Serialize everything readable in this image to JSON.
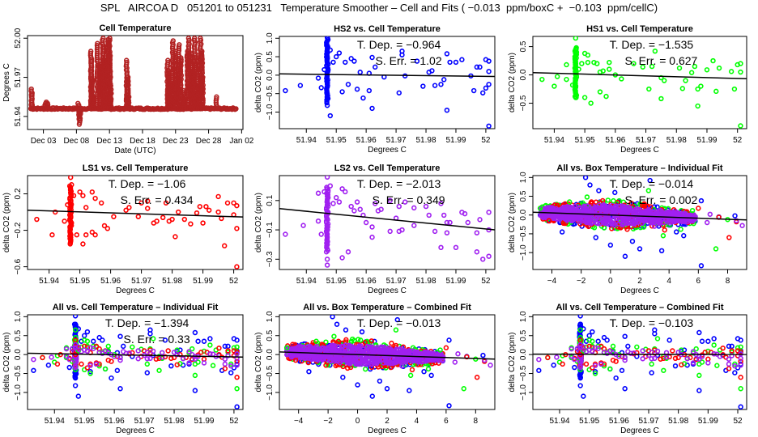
{
  "title": "SPL   AIRCOA D   051201 to 051231   Temperature Smoother – Cell and Fits ( −0.013  ppm/boxC +  −0.103  ppm/cellC)",
  "colors": {
    "HS2": "#0000ff",
    "HS1": "#00ff00",
    "LS1": "#ff0000",
    "LS2": "#a020f0",
    "cell": "#b22222",
    "fit": "#000000"
  },
  "chart_data": [
    {
      "id": "cell-temperature",
      "type": "scatter",
      "title": "Cell Temperature",
      "xlabel": "Date (UTC)",
      "ylabel": "Degrees C",
      "xticks": [
        "Dec 03",
        "Dec 08",
        "Dec 13",
        "Dec 18",
        "Dec 23",
        "Dec 28",
        "Jan 02"
      ],
      "xtick_days": [
        3,
        8,
        13,
        18,
        23,
        28,
        33
      ],
      "xlim": [
        0.6,
        33.2
      ],
      "yticks": [
        51.94,
        51.97,
        52.0
      ],
      "ylim": [
        51.93,
        52.002
      ],
      "series": [
        {
          "name": "cell",
          "color": "#b22222",
          "baseline": 51.946,
          "x": [
            1.2,
            1.3,
            3.3,
            3.5,
            3.7,
            8.3,
            8.4,
            8.5,
            8.6,
            10.2,
            10.3,
            10.4,
            10.5,
            11.2,
            11.5,
            11.7,
            12.0,
            12.1,
            12.3,
            12.5,
            12.8,
            13.0,
            13.1,
            13.2,
            15.6,
            15.8,
            15.9,
            21.8,
            22.0,
            22.2,
            22.4,
            22.6,
            22.9,
            23.0,
            23.2,
            23.5,
            23.8,
            24.1,
            24.4,
            24.8,
            25.0,
            25.3,
            25.6,
            25.9,
            26.2,
            26.5,
            26.8,
            27.0,
            27.1,
            29.2
          ],
          "y": [
            51.961,
            51.958,
            51.95,
            51.951,
            51.95,
            51.95,
            51.938,
            51.934,
            51.942,
            51.99,
            51.984,
            51.968,
            51.955,
            51.996,
            51.98,
            51.978,
            52.0,
            51.994,
            51.985,
            51.955,
            51.999,
            52.0,
            51.988,
            51.965,
            51.983,
            51.97,
            51.955,
            51.983,
            51.975,
            51.962,
            51.955,
            51.998,
            51.99,
            51.975,
            51.968,
            51.995,
            51.985,
            51.96,
            51.952,
            51.99,
            52.0,
            51.988,
            51.975,
            52.0,
            51.985,
            51.965,
            52.0,
            51.99,
            51.97,
            51.955
          ]
        }
      ]
    },
    {
      "id": "hs2-vs-cell",
      "type": "scatter",
      "title": "HS2 vs. Cell Temperature",
      "xlabel": "Degrees C",
      "ylabel": "delta CO2 (ppm)",
      "xticks": [
        51.94,
        51.95,
        51.96,
        51.97,
        51.98,
        51.99,
        52.0
      ],
      "xlim": [
        51.931,
        52.003
      ],
      "yticks": [
        -1.0,
        -0.5,
        0.0,
        0.5,
        1.0
      ],
      "ylim": [
        -1.45,
        1.05
      ],
      "annotations": [
        "T. Dep. =  −0.964",
        "S. Err. =  1.02"
      ],
      "fit": {
        "slope": -0.964,
        "intercept_at_x0": 0.035,
        "x0": 51.931
      },
      "series": [
        {
          "name": "HS2",
          "color": "#0000ff",
          "x": [
            51.933,
            51.938,
            51.944,
            51.945,
            51.946,
            51.947,
            51.947,
            51.947,
            51.947,
            51.947,
            51.947,
            51.947,
            51.948,
            51.948,
            51.949,
            51.95,
            51.951,
            51.952,
            51.953,
            51.954,
            51.955,
            51.956,
            51.957,
            51.958,
            51.959,
            51.961,
            51.961,
            51.962,
            51.962,
            51.963,
            51.966,
            51.971,
            51.972,
            51.972,
            51.973,
            51.977,
            51.979,
            51.981,
            51.982,
            51.983,
            51.985,
            51.986,
            51.987,
            51.987,
            51.988,
            51.99,
            51.992,
            51.995,
            51.996,
            51.997,
            51.998,
            51.999,
            52.0,
            52.0,
            52.001,
            52.001,
            52.001,
            52.001
          ],
          "y": [
            -0.42,
            -0.28,
            -0.08,
            -0.34,
            0.15,
            1.02,
            0.8,
            0.5,
            -0.5,
            -0.62,
            -0.82,
            0.25,
            -1.1,
            0.68,
            0.35,
            0.5,
            0.6,
            -0.45,
            0.35,
            -0.25,
            0.45,
            0.38,
            -0.38,
            0.08,
            -0.62,
            -0.42,
            0.05,
            0.48,
            -0.9,
            0.22,
            -0.05,
            -0.48,
            0.65,
            0.55,
            -0.02,
            0.38,
            -0.3,
            0.08,
            0.12,
            -0.28,
            -0.25,
            -0.12,
            0.58,
            -0.95,
            0.35,
            0.35,
            0.42,
            -0.02,
            -0.42,
            0.22,
            0.22,
            -0.48,
            0.42,
            -0.35,
            0.38,
            0.1,
            -0.25,
            -1.38
          ]
        }
      ]
    },
    {
      "id": "hs1-vs-cell",
      "type": "scatter",
      "title": "HS1 vs. Cell Temperature",
      "xlabel": "Degrees C",
      "ylabel": "delta CO2 (ppm)",
      "xticks": [
        51.94,
        51.95,
        51.96,
        51.97,
        51.98,
        51.99,
        52.0
      ],
      "xlim": [
        51.933,
        52.003
      ],
      "yticks": [
        -0.5,
        0.0,
        0.5
      ],
      "ylim": [
        -0.95,
        0.68
      ],
      "annotations": [
        "T. Dep. =  −1.535",
        "S. Err. =  0.627"
      ],
      "fit": {
        "slope": -1.535,
        "intercept_at_x0": 0.04,
        "x0": 51.933
      },
      "series": [
        {
          "name": "HS1",
          "color": "#00ff00",
          "x": [
            51.936,
            51.94,
            51.941,
            51.944,
            51.944,
            51.946,
            51.947,
            51.947,
            51.947,
            51.948,
            51.949,
            51.95,
            51.95,
            51.951,
            51.951,
            51.952,
            51.953,
            51.954,
            51.955,
            51.955,
            51.956,
            51.957,
            51.958,
            51.958,
            51.96,
            51.962,
            51.966,
            51.969,
            51.971,
            51.972,
            51.973,
            51.975,
            51.975,
            51.976,
            51.981,
            51.982,
            51.983,
            51.985,
            51.986,
            51.987,
            51.987,
            51.988,
            51.99,
            51.992,
            51.993,
            51.994,
            51.998,
            51.999,
            52.0,
            52.001,
            52.001,
            52.001
          ],
          "y": [
            -0.08,
            -0.2,
            -0.03,
            0.18,
            -0.08,
            -0.18,
            0.65,
            0.45,
            -0.4,
            0.1,
            0.2,
            -0.4,
            0.38,
            0.35,
            0.22,
            -0.5,
            0.22,
            0.2,
            -0.3,
            0.05,
            0.07,
            -0.38,
            0.22,
            0.1,
            0.0,
            -0.07,
            0.2,
            0.14,
            -0.25,
            0.15,
            0.42,
            -0.05,
            -0.42,
            -0.1,
            0.12,
            -0.24,
            -0.1,
            0.04,
            0.15,
            -0.55,
            -0.25,
            -0.2,
            0.09,
            0.25,
            -0.29,
            0.12,
            0.06,
            -0.25,
            0.18,
            0.2,
            0.05,
            -0.9
          ]
        }
      ]
    },
    {
      "id": "ls1-vs-cell",
      "type": "scatter",
      "title": "LS1 vs. Cell Temperature",
      "xlabel": "Degrees C",
      "ylabel": "delta CO2 (ppm)",
      "xticks": [
        51.94,
        51.95,
        51.96,
        51.97,
        51.98,
        51.99,
        52.0
      ],
      "xlim": [
        51.933,
        52.003
      ],
      "yticks": [
        -0.6,
        -0.2,
        0.2
      ],
      "ylim": [
        -0.63,
        0.4
      ],
      "annotations": [
        "T. Dep. =  −1.06",
        "S. Err. =  0.434"
      ],
      "fit": {
        "slope": -1.06,
        "intercept_at_x0": 0.02,
        "x0": 51.933
      },
      "series": [
        {
          "name": "LS1",
          "color": "#ff0000",
          "x": [
            51.936,
            51.941,
            51.942,
            51.945,
            51.946,
            51.947,
            51.947,
            51.947,
            51.948,
            51.949,
            51.95,
            51.951,
            51.951,
            51.952,
            51.952,
            51.954,
            51.954,
            51.955,
            51.955,
            51.957,
            51.958,
            51.959,
            51.961,
            51.965,
            51.966,
            51.969,
            51.97,
            51.972,
            51.972,
            51.974,
            51.975,
            51.977,
            51.978,
            51.979,
            51.98,
            51.981,
            51.982,
            51.984,
            51.986,
            51.988,
            51.989,
            51.99,
            51.991,
            51.992,
            51.995,
            51.995,
            51.996,
            51.997,
            51.998,
            52.0,
            52.0,
            52.001,
            52.001,
            52.001
          ],
          "y": [
            -0.08,
            -0.25,
            0.0,
            -0.1,
            0.08,
            0.38,
            -0.3,
            0.0,
            0.18,
            -0.25,
            0.22,
            -0.35,
            0.18,
            -0.25,
            0.05,
            0.22,
            -0.22,
            0.15,
            -0.25,
            0.1,
            -0.15,
            -0.18,
            -0.05,
            0.02,
            0.05,
            -0.05,
            0.1,
            0.12,
            0.04,
            -0.12,
            -0.1,
            -0.06,
            0.1,
            -0.1,
            -0.08,
            -0.27,
            0.0,
            -0.08,
            -0.13,
            -0.01,
            0.06,
            -0.12,
            0.06,
            0.02,
            0.17,
            0.0,
            -0.07,
            -0.37,
            0.1,
            0.1,
            -0.03,
            0.07,
            -0.18,
            -0.6
          ]
        }
      ]
    },
    {
      "id": "ls2-vs-cell",
      "type": "scatter",
      "title": "LS2 vs. Cell Temperature",
      "xlabel": "Degrees C",
      "ylabel": "delta CO2 (ppm)",
      "xticks": [
        51.94,
        51.95,
        51.96,
        51.97,
        51.98,
        51.99,
        52.0
      ],
      "xlim": [
        51.931,
        52.003
      ],
      "yticks": [
        -0.3,
        -0.1,
        0.1
      ],
      "ylim": [
        -0.37,
        0.27
      ],
      "annotations": [
        "T. Dep. =  −2.013",
        "S. Err. =  0.349"
      ],
      "fit": {
        "slope": -2.013,
        "intercept_at_x0": 0.045,
        "x0": 51.931
      },
      "series": [
        {
          "name": "LS2",
          "color": "#a020f0",
          "x": [
            51.933,
            51.939,
            51.944,
            51.944,
            51.945,
            51.946,
            51.947,
            51.947,
            51.947,
            51.947,
            51.947,
            51.948,
            51.949,
            51.95,
            51.951,
            51.952,
            51.952,
            51.953,
            51.954,
            51.955,
            51.956,
            51.957,
            51.958,
            51.959,
            51.96,
            51.962,
            51.962,
            51.963,
            51.964,
            51.965,
            51.968,
            51.968,
            51.97,
            51.971,
            51.971,
            51.972,
            51.973,
            51.976,
            51.976,
            51.98,
            51.981,
            51.983,
            51.985,
            51.985,
            51.986,
            51.987,
            51.987,
            51.988,
            51.99,
            51.992,
            51.993,
            51.994,
            51.997,
            51.997,
            51.998,
            51.999,
            52.001,
            52.001,
            52.001
          ],
          "y": [
            -0.13,
            -0.07,
            0.15,
            -0.04,
            -0.13,
            0.16,
            0.26,
            -0.3,
            -0.34,
            0.18,
            -0.2,
            0.2,
            0.08,
            0.12,
            0.09,
            0.18,
            -0.29,
            0.16,
            -0.25,
            0.06,
            0.03,
            0.09,
            0.04,
            0.0,
            -0.05,
            -0.15,
            -0.08,
            0.08,
            0.03,
            0.04,
            -0.11,
            0.1,
            -0.02,
            0.06,
            -0.11,
            -0.1,
            0.09,
            -0.07,
            0.05,
            0.06,
            0.0,
            -0.11,
            -0.22,
            0.08,
            0.0,
            -0.05,
            -0.12,
            -0.05,
            -0.22,
            0.02,
            0.01,
            -0.05,
            -0.25,
            -0.12,
            -0.03,
            -0.3,
            -0.28,
            0.02,
            -0.1
          ]
        }
      ]
    },
    {
      "id": "all-vs-box-individual",
      "type": "scatter",
      "title": "All vs. Box Temperature – Individual Fit",
      "xlabel": "Degrees C",
      "ylabel": "delta CO2 (ppm)",
      "xticks": [
        -4,
        -2,
        0,
        2,
        4,
        6,
        8
      ],
      "xlim": [
        -5.3,
        9.3
      ],
      "yticks": [
        -1.0,
        -0.5,
        0.0,
        0.5,
        1.0
      ],
      "ylim": [
        -1.45,
        1.05
      ],
      "annotations": [
        "T. Dep. =  −0.014",
        "S. Err. =  0.002"
      ],
      "fit": {
        "slope": -0.014,
        "intercept_at_x0": 0.0,
        "x0": 0
      },
      "cloud": {
        "xmin": -4.8,
        "xmax": 5.8,
        "spread": 0.25
      },
      "series": [
        {
          "name": "HS2",
          "color": "#0000ff",
          "x": [
            -1.7,
            -1.4,
            -0.8,
            0.3,
            1.0,
            2.0,
            2.7,
            3.5,
            -3.3,
            -1.0,
            0.0,
            1.5,
            5.0,
            6.2,
            6.2,
            4.5,
            8.5,
            7.4
          ],
          "y": [
            1.0,
            0.8,
            0.65,
            0.6,
            -1.1,
            -0.9,
            0.92,
            -0.95,
            -0.45,
            -0.6,
            -0.8,
            -0.7,
            -0.55,
            -1.35,
            0.38,
            -0.45,
            -0.02,
            -0.05
          ]
        },
        {
          "name": "HS1",
          "color": "#00ff00",
          "x": [
            -4.8,
            -2.8,
            2.6,
            3.6,
            7.2,
            8.0,
            -1.6,
            0.2,
            4.8,
            5.6
          ],
          "y": [
            0.18,
            0.35,
            0.65,
            -0.55,
            -0.9,
            -0.12,
            0.48,
            0.38,
            -0.38,
            0.12
          ]
        },
        {
          "name": "LS1",
          "color": "#ff0000",
          "x": [
            8.1,
            -4.2,
            -1.3,
            3.7,
            6.0,
            7.4,
            8.6,
            2.3
          ],
          "y": [
            -0.6,
            -0.15,
            0.35,
            -0.4,
            0.18,
            -0.06,
            -0.18,
            0.3
          ]
        },
        {
          "name": "LS2",
          "color": "#a020f0",
          "x": [
            6.6,
            6.8,
            9.0,
            8.6,
            3.0,
            -4.5
          ],
          "y": [
            -0.2,
            0.02,
            -0.28,
            -0.15,
            -0.3,
            0.05
          ]
        }
      ]
    },
    {
      "id": "all-vs-cell-individual",
      "type": "scatter",
      "title": "All vs. Cell Temperature – Individual Fit",
      "xlabel": "Degrees C",
      "ylabel": "delta CO2 (ppm)",
      "xticks": [
        51.94,
        51.95,
        51.96,
        51.97,
        51.98,
        51.99,
        52.0
      ],
      "xlim": [
        51.931,
        52.003
      ],
      "yticks": [
        -1.0,
        -0.5,
        0.0,
        0.5,
        1.0
      ],
      "ylim": [
        -1.45,
        1.05
      ],
      "annotations": [
        "T. Dep. =  −1.394",
        "S. Err. =  0.33"
      ],
      "fit": {
        "slope": -1.394,
        "intercept_at_x0": 0.035,
        "x0": 51.931
      },
      "combine": [
        "hs2-vs-cell",
        "hs1-vs-cell",
        "ls1-vs-cell",
        "ls2-vs-cell"
      ]
    },
    {
      "id": "all-vs-box-combined",
      "type": "scatter",
      "title": "All vs. Box Temperature – Combined Fit",
      "xlabel": "Degrees C",
      "ylabel": "delta CO2 (ppm)",
      "xticks": [
        -4,
        -2,
        0,
        2,
        4,
        6,
        8
      ],
      "xlim": [
        -5.3,
        9.3
      ],
      "yticks": [
        -1.0,
        -0.5,
        0.0,
        0.5,
        1.0
      ],
      "ylim": [
        -1.45,
        1.05
      ],
      "annotations": [
        "T. Dep. =  −0.013"
      ],
      "fit": {
        "slope": -0.013,
        "intercept_at_x0": 0.0,
        "x0": 0
      },
      "same_points_as": "all-vs-box-individual"
    },
    {
      "id": "all-vs-cell-combined",
      "type": "scatter",
      "title": "All vs. Cell Temperature – Combined Fit",
      "xlabel": "Degrees C",
      "ylabel": "delta CO2 (ppm)",
      "xticks": [
        51.94,
        51.95,
        51.96,
        51.97,
        51.98,
        51.99,
        52.0
      ],
      "xlim": [
        51.931,
        52.003
      ],
      "yticks": [
        -1.0,
        -0.5,
        0.0,
        0.5,
        1.0
      ],
      "ylim": [
        -1.45,
        1.05
      ],
      "annotations": [
        "T. Dep. =  −0.103"
      ],
      "fit": {
        "slope": -0.103,
        "intercept_at_x0": 0.01,
        "x0": 51.931
      },
      "combine": [
        "hs2-vs-cell",
        "hs1-vs-cell",
        "ls1-vs-cell",
        "ls2-vs-cell"
      ]
    }
  ]
}
